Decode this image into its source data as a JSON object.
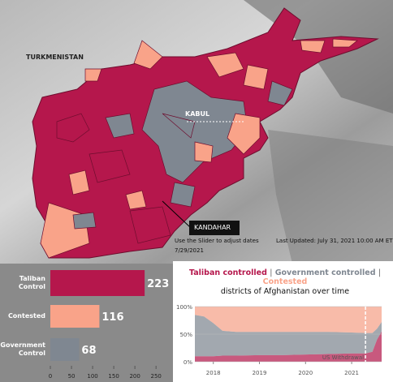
{
  "map": {
    "labels": {
      "country": "TURKMENISTAN",
      "capital": "KABUL",
      "city": "KANDAHAR"
    },
    "slider_hint": "Use the Slider to adjust dates",
    "date": "7/29/2021",
    "last_updated": "Last Updated: July 31, 2021 10:00 AM ET"
  },
  "chart_data": [
    {
      "type": "bar",
      "orientation": "horizontal",
      "categories": [
        "Taliban Control",
        "Contested",
        "Government Control"
      ],
      "values": [
        223,
        116,
        68
      ],
      "colors": [
        "#b5174c",
        "#f9a389",
        "#7f8791"
      ],
      "xlim": [
        0,
        290
      ],
      "xticks": [
        0,
        50,
        100,
        150,
        200,
        250
      ]
    },
    {
      "type": "area",
      "stacked": true,
      "title": [
        "Taliban controlled",
        "|",
        "Government controlled",
        "|",
        "Contested"
      ],
      "subtitle": "districts of Afghanistan over time",
      "x": [
        2017.6,
        2017.8,
        2018.0,
        2018.2,
        2018.5,
        2019.0,
        2019.5,
        2020.0,
        2020.5,
        2021.0,
        2021.3,
        2021.45,
        2021.55,
        2021.65
      ],
      "series": [
        {
          "name": "Taliban controlled",
          "color": "#b5174c",
          "values": [
            10,
            10,
            10,
            11,
            11,
            12,
            12,
            13,
            14,
            15,
            15,
            18,
            40,
            55
          ]
        },
        {
          "name": "Government controlled",
          "color": "#7f8791",
          "values": [
            75,
            72,
            60,
            45,
            43,
            42,
            42,
            41,
            40,
            38,
            37,
            34,
            20,
            17
          ]
        },
        {
          "name": "Contested",
          "color": "#f9a389",
          "values": [
            15,
            18,
            30,
            44,
            46,
            46,
            46,
            46,
            46,
            47,
            48,
            48,
            40,
            28
          ]
        }
      ],
      "xlim": [
        2017.6,
        2021.65
      ],
      "xticks": [
        2018,
        2019,
        2020,
        2021
      ],
      "ylim": [
        0,
        100
      ],
      "yticks": [
        {
          "value": 0,
          "label": "0%"
        },
        {
          "value": 50,
          "label": "50%"
        },
        {
          "value": 100,
          "label": "100%"
        }
      ],
      "annotation": {
        "text": "US Withdrawal",
        "x": 2021.3
      }
    }
  ]
}
